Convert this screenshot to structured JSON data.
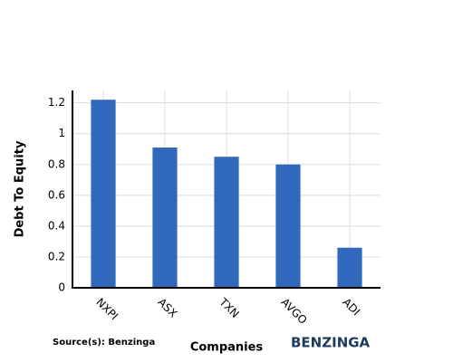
{
  "chart_data": {
    "type": "bar",
    "categories": [
      "NXPI",
      "ASX",
      "TXN",
      "AVGO",
      "ADI"
    ],
    "values": [
      1.22,
      0.91,
      0.85,
      0.8,
      0.26
    ],
    "color": "#3068bc",
    "ylim": [
      0,
      1.28
    ],
    "yticks": [
      0,
      0.2,
      0.4,
      0.6,
      0.8,
      1,
      1.2
    ],
    "grid": true,
    "x_label": "Companies",
    "y_label": "Debt To Equity",
    "source": "Source(s): Benzinga",
    "logo": "BENZINGA"
  }
}
